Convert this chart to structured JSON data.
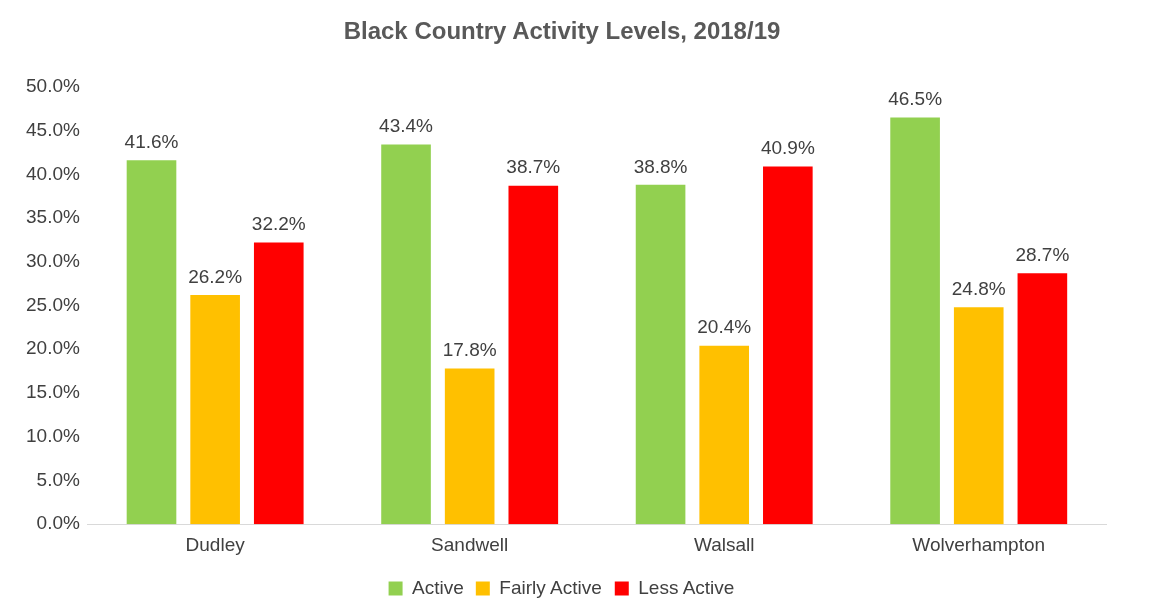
{
  "chart_data": {
    "type": "bar",
    "title": "Black Country Activity Levels, 2018/19",
    "categories": [
      "Dudley",
      "Sandwell",
      "Walsall",
      "Wolverhampton"
    ],
    "series": [
      {
        "name": "Active",
        "color": "#92d050",
        "values": [
          41.6,
          43.4,
          38.8,
          46.5
        ],
        "value_labels": [
          "41.6%",
          "43.4%",
          "38.8%",
          "46.5%"
        ]
      },
      {
        "name": "Fairly Active",
        "color": "#ffc000",
        "values": [
          26.2,
          17.8,
          20.4,
          24.8
        ],
        "value_labels": [
          "26.2%",
          "17.8%",
          "20.4%",
          "24.8%"
        ]
      },
      {
        "name": "Less Active",
        "color": "#ff0000",
        "values": [
          32.2,
          38.7,
          40.9,
          28.7
        ],
        "value_labels": [
          "32.2%",
          "38.7%",
          "40.9%",
          "28.7%"
        ]
      }
    ],
    "ylim": [
      0,
      50
    ],
    "yticks": [
      {
        "value": 0,
        "label": "0.0%"
      },
      {
        "value": 5,
        "label": "5.0%"
      },
      {
        "value": 10,
        "label": "10.0%"
      },
      {
        "value": 15,
        "label": "15.0%"
      },
      {
        "value": 20,
        "label": "20.0%"
      },
      {
        "value": 25,
        "label": "25.0%"
      },
      {
        "value": 30,
        "label": "30.0%"
      },
      {
        "value": 35,
        "label": "35.0%"
      },
      {
        "value": 40,
        "label": "40.0%"
      },
      {
        "value": 45,
        "label": "45.0%"
      },
      {
        "value": 50,
        "label": "50.0%"
      }
    ],
    "grid": false,
    "legend": "bottom"
  }
}
